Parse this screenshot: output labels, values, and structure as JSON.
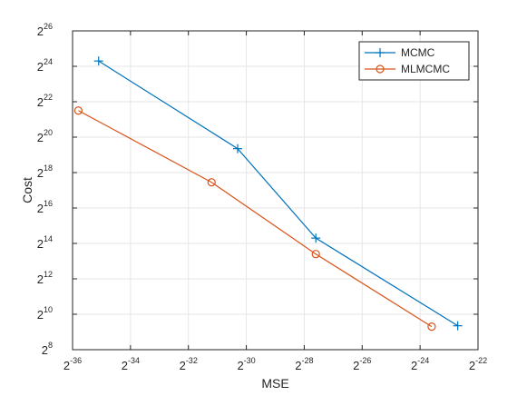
{
  "chart_data": {
    "type": "line",
    "xlabel": "MSE",
    "ylabel": "Cost",
    "x_scale": "log2",
    "y_scale": "log2",
    "xlim_log2": [
      -36,
      -22
    ],
    "ylim_log2": [
      8,
      26
    ],
    "x_ticks_log2": [
      -36,
      -34,
      -32,
      -30,
      -28,
      -26,
      -24,
      -22
    ],
    "y_ticks_log2": [
      8,
      10,
      12,
      14,
      16,
      18,
      20,
      22,
      24,
      26
    ],
    "tick_base": "2",
    "grid": true,
    "legend_position": "top-right",
    "series": [
      {
        "name": "MCMC",
        "color": "#0072BD",
        "marker": "plus",
        "x_log2": [
          -35.1,
          -30.3,
          -27.6,
          -22.7
        ],
        "y_log2": [
          24.3,
          19.35,
          14.3,
          9.35
        ]
      },
      {
        "name": "MLMCMC",
        "color": "#D95319",
        "marker": "circle",
        "x_log2": [
          -35.8,
          -31.2,
          -27.6,
          -23.6
        ],
        "y_log2": [
          21.5,
          17.45,
          13.4,
          9.3
        ]
      }
    ]
  }
}
